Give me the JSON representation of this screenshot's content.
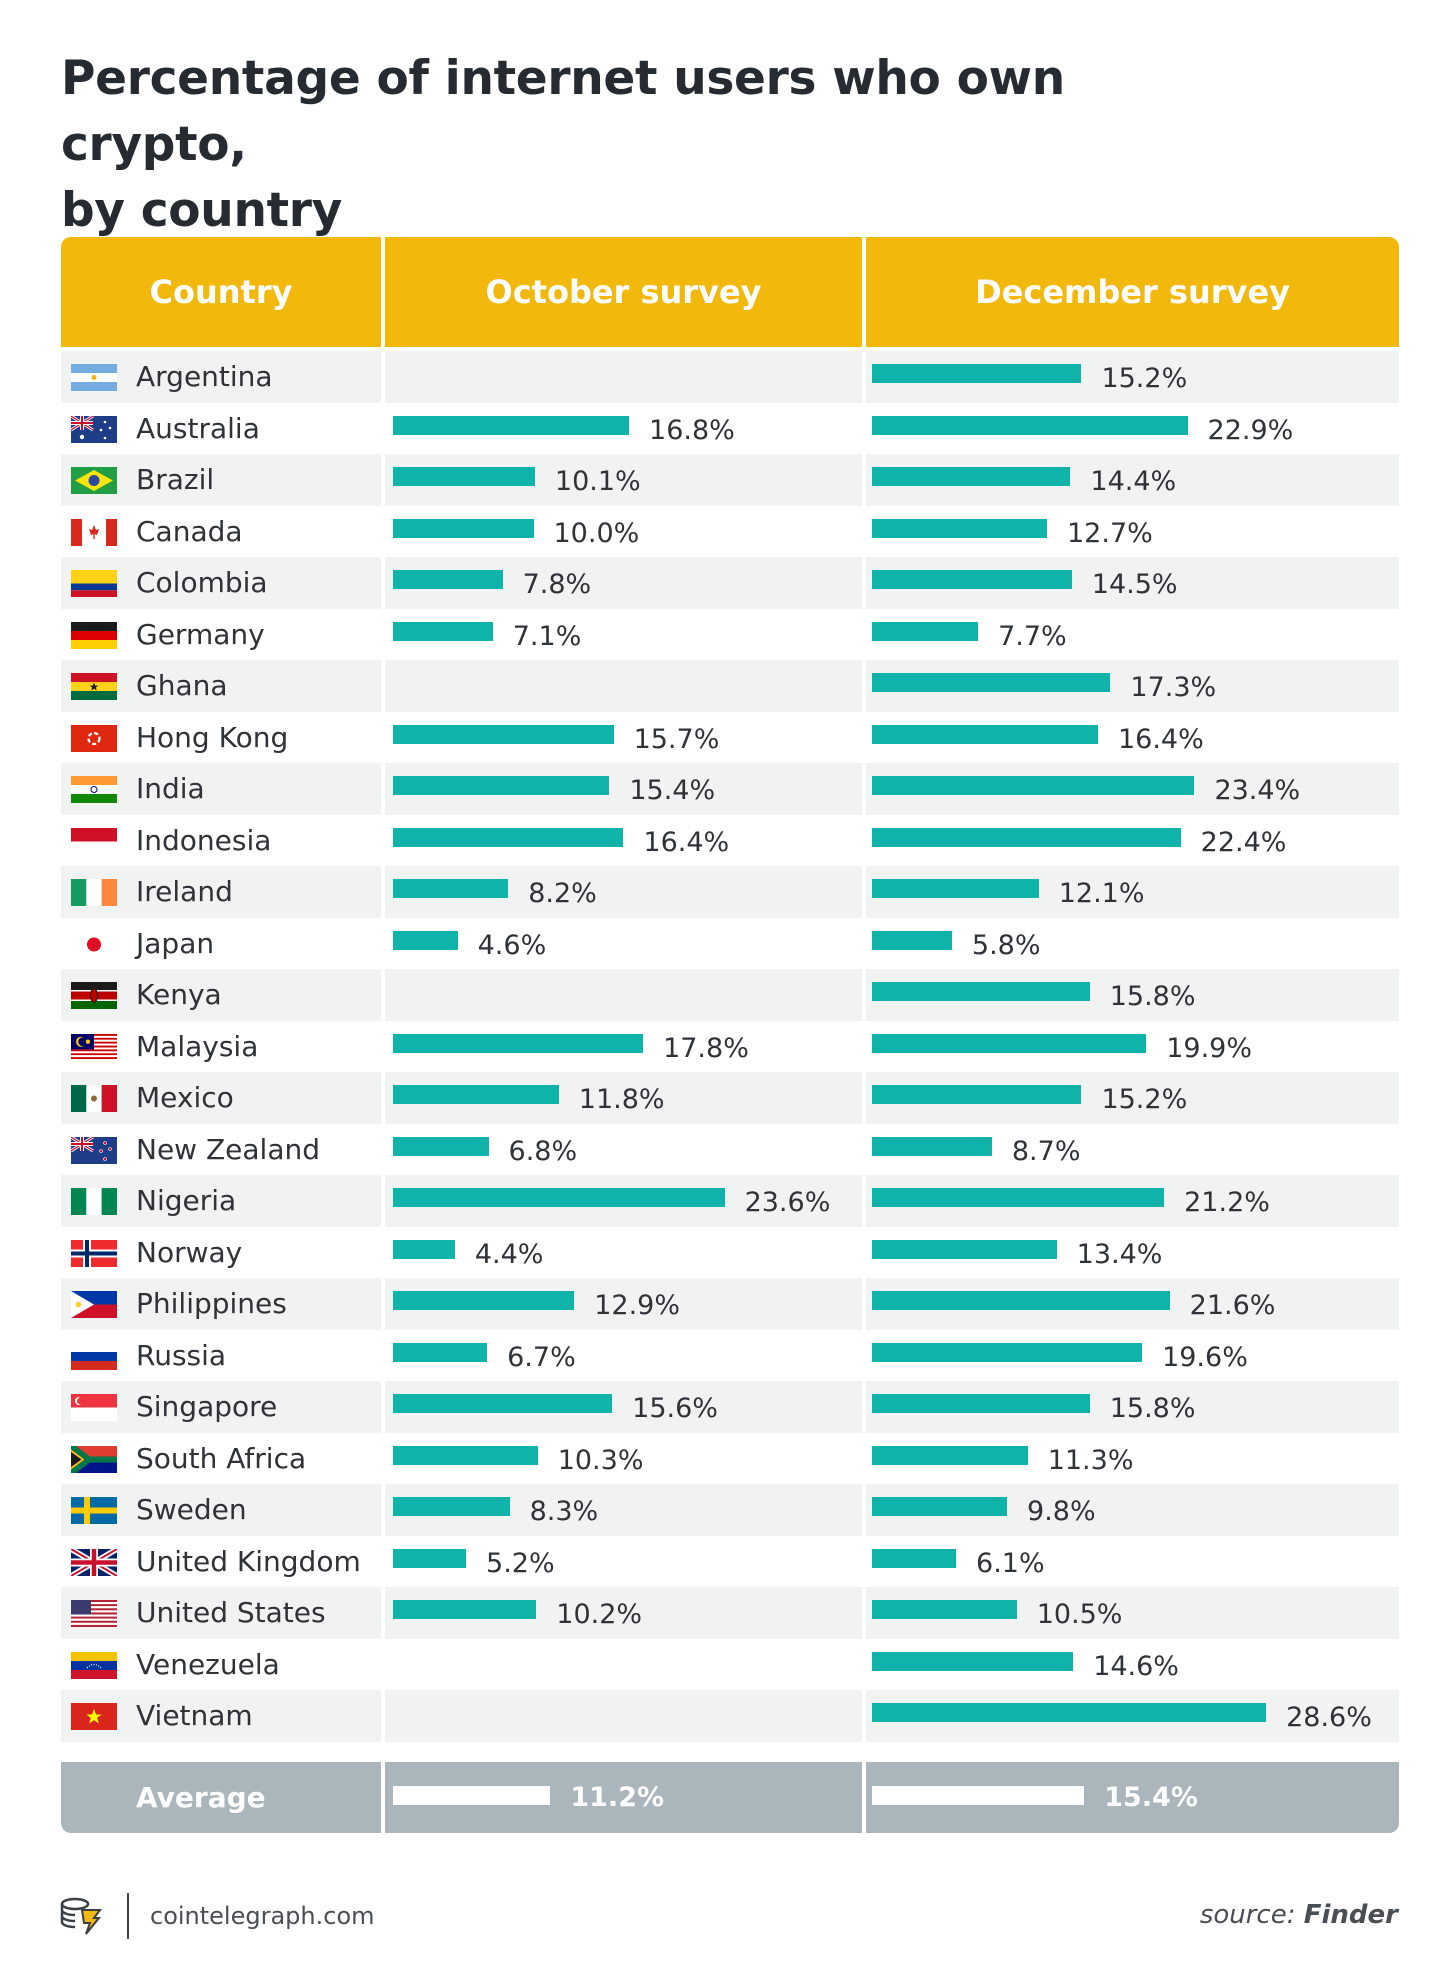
{
  "title_line1": "Percentage of internet users who own crypto,",
  "title_line2": "by country",
  "colors": {
    "header": "#f2b80c",
    "bar": "#10b3a9",
    "average_row": "#aab6bb"
  },
  "chart_data": {
    "type": "bar",
    "title": "Percentage of internet users who own crypto, by country",
    "columns": [
      "Country",
      "October survey",
      "December survey"
    ],
    "unit": "%",
    "rows": [
      {
        "country": "Argentina",
        "flag": "argentina-flag-icon",
        "october": null,
        "december": 15.2
      },
      {
        "country": "Australia",
        "flag": "australia-flag-icon",
        "october": 16.8,
        "december": 22.9
      },
      {
        "country": "Brazil",
        "flag": "brazil-flag-icon",
        "october": 10.1,
        "december": 14.4
      },
      {
        "country": "Canada",
        "flag": "canada-flag-icon",
        "october": 10.0,
        "december": 12.7
      },
      {
        "country": "Colombia",
        "flag": "colombia-flag-icon",
        "october": 7.8,
        "december": 14.5
      },
      {
        "country": "Germany",
        "flag": "germany-flag-icon",
        "october": 7.1,
        "december": 7.7
      },
      {
        "country": "Ghana",
        "flag": "ghana-flag-icon",
        "october": null,
        "december": 17.3
      },
      {
        "country": "Hong Kong",
        "flag": "hong-kong-flag-icon",
        "october": 15.7,
        "december": 16.4
      },
      {
        "country": "India",
        "flag": "india-flag-icon",
        "october": 15.4,
        "december": 23.4
      },
      {
        "country": "Indonesia",
        "flag": "indonesia-flag-icon",
        "october": 16.4,
        "december": 22.4
      },
      {
        "country": "Ireland",
        "flag": "ireland-flag-icon",
        "october": 8.2,
        "december": 12.1
      },
      {
        "country": "Japan",
        "flag": "japan-flag-icon",
        "october": 4.6,
        "december": 5.8
      },
      {
        "country": "Kenya",
        "flag": "kenya-flag-icon",
        "october": null,
        "december": 15.8
      },
      {
        "country": "Malaysia",
        "flag": "malaysia-flag-icon",
        "october": 17.8,
        "december": 19.9
      },
      {
        "country": "Mexico",
        "flag": "mexico-flag-icon",
        "october": 11.8,
        "december": 15.2
      },
      {
        "country": "New Zealand",
        "flag": "new-zealand-flag-icon",
        "october": 6.8,
        "december": 8.7
      },
      {
        "country": "Nigeria",
        "flag": "nigeria-flag-icon",
        "october": 23.6,
        "december": 21.2
      },
      {
        "country": "Norway",
        "flag": "norway-flag-icon",
        "october": 4.4,
        "december": 13.4
      },
      {
        "country": "Philippines",
        "flag": "philippines-flag-icon",
        "october": 12.9,
        "december": 21.6
      },
      {
        "country": "Russia",
        "flag": "russia-flag-icon",
        "october": 6.7,
        "december": 19.6
      },
      {
        "country": "Singapore",
        "flag": "singapore-flag-icon",
        "october": 15.6,
        "december": 15.8
      },
      {
        "country": "South Africa",
        "flag": "south-africa-flag-icon",
        "october": 10.3,
        "december": 11.3
      },
      {
        "country": "Sweden",
        "flag": "sweden-flag-icon",
        "october": 8.3,
        "december": 9.8
      },
      {
        "country": "United Kingdom",
        "flag": "united-kingdom-flag-icon",
        "october": 5.2,
        "december": 6.1
      },
      {
        "country": "United States",
        "flag": "united-states-flag-icon",
        "october": 10.2,
        "december": 10.5
      },
      {
        "country": "Venezuela",
        "flag": "venezuela-flag-icon",
        "october": null,
        "december": 14.6
      },
      {
        "country": "Vietnam",
        "flag": "vietnam-flag-icon",
        "october": null,
        "december": 28.6
      }
    ],
    "average": {
      "label": "Average",
      "october": 11.2,
      "december": 15.4
    }
  },
  "footer": {
    "logo_icon": "cointelegraph-logo-icon",
    "site": "cointelegraph.com",
    "source_prefix": "source: ",
    "source_name": "Finder"
  }
}
